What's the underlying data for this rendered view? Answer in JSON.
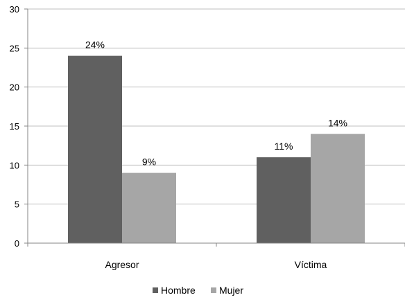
{
  "chart_data": {
    "type": "bar",
    "categories": [
      "Agresor",
      "Víctima"
    ],
    "series": [
      {
        "name": "Hombre",
        "color": "#606060",
        "values": [
          24,
          11
        ],
        "labels": [
          "24%",
          "11%"
        ]
      },
      {
        "name": "Mujer",
        "color": "#a6a6a6",
        "values": [
          9,
          14
        ],
        "labels": [
          "9%",
          "14%"
        ]
      }
    ],
    "title": "",
    "xlabel": "",
    "ylabel": "",
    "ylim": [
      0,
      30
    ],
    "yticks": [
      "0",
      "5",
      "10",
      "15",
      "20",
      "25",
      "30"
    ],
    "grid": true,
    "legend": "bottom"
  }
}
